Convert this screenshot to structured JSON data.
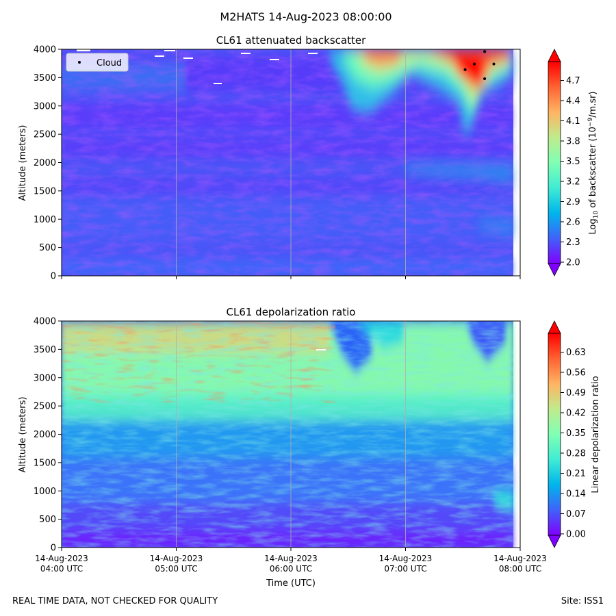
{
  "figure": {
    "suptitle": "M2HATS 14-Aug-2023 08:00:00",
    "footer_left": "REAL TIME DATA, NOT CHECKED FOR QUALITY",
    "footer_right": "Site: ISS1"
  },
  "colors": {
    "rainbow": [
      "#8000ff",
      "#4062fa",
      "#00b5eb",
      "#40ecd4",
      "#80ffb4",
      "#c0eb8d",
      "#ffb462",
      "#ff6232",
      "#ff0000"
    ]
  },
  "chart_data": [
    {
      "type": "heatmap",
      "title": "CL61 attenuated backscatter",
      "ylabel": "Altitude (meters)",
      "xlabel": "",
      "ylim": [
        0,
        4000
      ],
      "yticks": [
        0,
        500,
        1000,
        1500,
        2000,
        2500,
        3000,
        3500,
        4000
      ],
      "x_tick_labels": [],
      "colorbar": {
        "label_main": "Log",
        "label_sub": "10",
        "label_mid": " of backscatter (10",
        "label_sup": "−9",
        "label_end": "/m.sr)",
        "range": [
          2.0,
          4.7
        ],
        "ticks": [
          "2.0",
          "2.3",
          "2.6",
          "2.9",
          "3.2",
          "3.5",
          "3.8",
          "4.1",
          "4.4",
          "4.7"
        ],
        "extend": "both"
      },
      "legend": {
        "label": "Cloud",
        "position": "upper-left"
      },
      "cloud_points": [
        {
          "t": 3.52,
          "alt": 3640
        },
        {
          "t": 3.6,
          "alt": 3740
        },
        {
          "t": 3.69,
          "alt": 3960
        },
        {
          "t": 3.69,
          "alt": 3480
        },
        {
          "t": 3.77,
          "alt": 3740
        }
      ]
    },
    {
      "type": "heatmap",
      "title": "CL61 depolarization ratio",
      "ylabel": "Altitude (meters)",
      "xlabel": "Time (UTC)",
      "ylim": [
        0,
        4000
      ],
      "yticks": [
        0,
        500,
        1000,
        1500,
        2000,
        2500,
        3000,
        3500,
        4000
      ],
      "x_tick_labels": [
        [
          "14-Aug-2023",
          "04:00 UTC"
        ],
        [
          "14-Aug-2023",
          "05:00 UTC"
        ],
        [
          "14-Aug-2023",
          "06:00 UTC"
        ],
        [
          "14-Aug-2023",
          "07:00 UTC"
        ],
        [
          "14-Aug-2023",
          "08:00 UTC"
        ]
      ],
      "colorbar": {
        "label": "Linear depolarization ratio",
        "range": [
          0.0,
          0.63
        ],
        "ticks": [
          "0.00",
          "0.07",
          "0.14",
          "0.21",
          "0.28",
          "0.35",
          "0.42",
          "0.49",
          "0.56",
          "0.63"
        ],
        "extend": "both"
      }
    }
  ]
}
